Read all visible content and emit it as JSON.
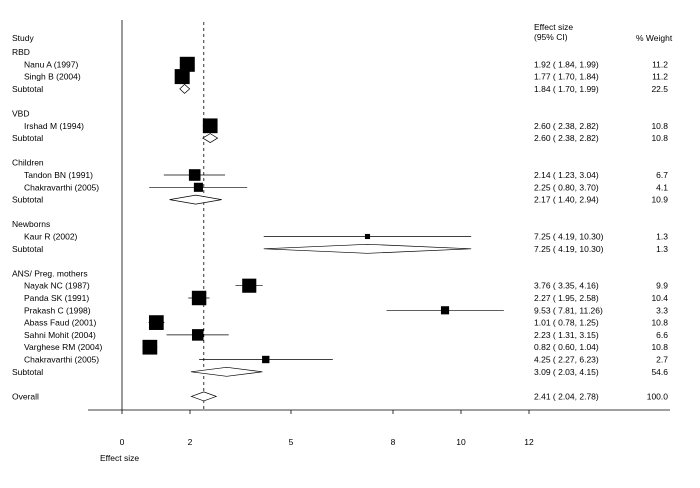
{
  "chart_data": {
    "type": "forest",
    "headers": {
      "study": "Study",
      "effect_size_line1": "Effect size",
      "effect_size_line2": "(95% CI)",
      "weight": "% Weight"
    },
    "xlabel": "Effect size",
    "xlim": [
      0,
      12
    ],
    "x_ticks": [
      0,
      2,
      5,
      8,
      10,
      12
    ],
    "reference_line": 2.41,
    "rows": [
      {
        "kind": "group",
        "label": "RBD"
      },
      {
        "kind": "study",
        "label": "Nanu A (1997)",
        "es": 1.92,
        "lo": 1.84,
        "hi": 1.99,
        "ci_text": "1.92 ( 1.84, 1.99)",
        "weight": 11.2,
        "weight_text": "11.2"
      },
      {
        "kind": "study",
        "label": "Singh B (2004)",
        "es": 1.77,
        "lo": 1.7,
        "hi": 1.84,
        "ci_text": "1.77 ( 1.70, 1.84)",
        "weight": 11.2,
        "weight_text": "11.2"
      },
      {
        "kind": "subtotal",
        "label": "Subtotal",
        "es": 1.84,
        "lo": 1.7,
        "hi": 1.99,
        "ci_text": "1.84 ( 1.70, 1.99)",
        "weight_text": "22.5"
      },
      {
        "kind": "gap"
      },
      {
        "kind": "group",
        "label": "VBD"
      },
      {
        "kind": "study",
        "label": "Irshad M (1994)",
        "es": 2.6,
        "lo": 2.38,
        "hi": 2.82,
        "ci_text": "2.60 ( 2.38, 2.82)",
        "weight": 10.8,
        "weight_text": "10.8"
      },
      {
        "kind": "subtotal",
        "label": "Subtotal",
        "es": 2.6,
        "lo": 2.38,
        "hi": 2.82,
        "ci_text": "2.60 ( 2.38, 2.82)",
        "weight_text": "10.8"
      },
      {
        "kind": "gap"
      },
      {
        "kind": "group",
        "label": "Children"
      },
      {
        "kind": "study",
        "label": "Tandon BN (1991)",
        "es": 2.14,
        "lo": 1.23,
        "hi": 3.04,
        "ci_text": "2.14 ( 1.23, 3.04)",
        "weight": 6.7,
        "weight_text": "6.7"
      },
      {
        "kind": "study",
        "label": "Chakravarthi (2005)",
        "es": 2.25,
        "lo": 0.8,
        "hi": 3.7,
        "ci_text": "2.25 ( 0.80, 3.70)",
        "weight": 4.1,
        "weight_text": "4.1"
      },
      {
        "kind": "subtotal",
        "label": "Subtotal",
        "es": 2.17,
        "lo": 1.4,
        "hi": 2.94,
        "ci_text": "2.17 ( 1.40, 2.94)",
        "weight_text": "10.9"
      },
      {
        "kind": "gap"
      },
      {
        "kind": "group",
        "label": "Newborns"
      },
      {
        "kind": "study",
        "label": "Kaur R (2002)",
        "es": 7.25,
        "lo": 4.19,
        "hi": 10.3,
        "ci_text": "7.25 ( 4.19, 10.30)",
        "weight": 1.3,
        "weight_text": "1.3"
      },
      {
        "kind": "subtotal",
        "label": "Subtotal",
        "es": 7.25,
        "lo": 4.19,
        "hi": 10.3,
        "ci_text": "7.25 ( 4.19, 10.30)",
        "weight_text": "1.3"
      },
      {
        "kind": "gap"
      },
      {
        "kind": "group",
        "label": "ANS/ Preg. mothers"
      },
      {
        "kind": "study",
        "label": "Nayak NC (1987)",
        "es": 3.76,
        "lo": 3.35,
        "hi": 4.16,
        "ci_text": "3.76 ( 3.35, 4.16)",
        "weight": 9.9,
        "weight_text": "9.9"
      },
      {
        "kind": "study",
        "label": "Panda SK (1991)",
        "es": 2.27,
        "lo": 1.95,
        "hi": 2.58,
        "ci_text": "2.27 ( 1.95, 2.58)",
        "weight": 10.4,
        "weight_text": "10.4"
      },
      {
        "kind": "study",
        "label": "Prakash C (1998)",
        "es": 9.53,
        "lo": 7.81,
        "hi": 11.26,
        "ci_text": "9.53 ( 7.81, 11.26)",
        "weight": 3.3,
        "weight_text": "3.3"
      },
      {
        "kind": "study",
        "label": "Abass Faud (2001)",
        "es": 1.01,
        "lo": 0.78,
        "hi": 1.25,
        "ci_text": "1.01 ( 0.78, 1.25)",
        "weight": 10.8,
        "weight_text": "10.8"
      },
      {
        "kind": "study",
        "label": "Sahni Mohit (2004)",
        "es": 2.23,
        "lo": 1.31,
        "hi": 3.15,
        "ci_text": "2.23 ( 1.31, 3.15)",
        "weight": 6.6,
        "weight_text": "6.6"
      },
      {
        "kind": "study",
        "label": "Varghese RM (2004)",
        "es": 0.82,
        "lo": 0.6,
        "hi": 1.04,
        "ci_text": "0.82 ( 0.60, 1.04)",
        "weight": 10.8,
        "weight_text": "10.8"
      },
      {
        "kind": "study",
        "label": "Chakravarthi (2005)",
        "es": 4.25,
        "lo": 2.27,
        "hi": 6.23,
        "ci_text": "4.25 ( 2.27, 6.23)",
        "weight": 2.7,
        "weight_text": "2.7"
      },
      {
        "kind": "subtotal",
        "label": "Subtotal",
        "es": 3.09,
        "lo": 2.03,
        "hi": 4.15,
        "ci_text": "3.09 ( 2.03, 4.15)",
        "weight_text": "54.6"
      },
      {
        "kind": "gap"
      },
      {
        "kind": "overall",
        "label": "Overall",
        "es": 2.41,
        "lo": 2.04,
        "hi": 2.78,
        "ci_text": "2.41 ( 2.04, 2.78)",
        "weight_text": "100.0"
      }
    ]
  }
}
